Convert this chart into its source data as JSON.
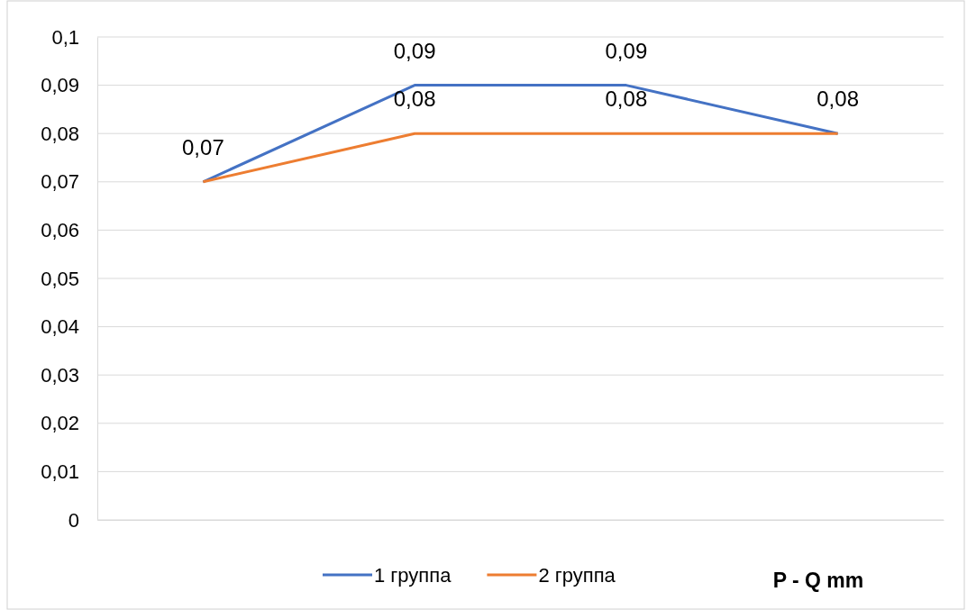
{
  "chart_data": {
    "type": "line",
    "xlabel": "P - Q mm",
    "categories": [
      null,
      null,
      null,
      null
    ],
    "series": [
      {
        "name": "1 группа",
        "color": "#4472c4",
        "values": [
          0.07,
          0.09,
          0.09,
          0.08
        ],
        "value_labels": [
          "0,07",
          "0,09",
          "0,09",
          "0,08"
        ]
      },
      {
        "name": "2 группа",
        "color": "#ed7d31",
        "values": [
          0.07,
          0.08,
          0.08,
          0.08
        ],
        "value_labels": [
          null,
          "0,08",
          "0,08",
          null
        ]
      }
    ],
    "ylim": [
      0,
      0.1
    ],
    "yticks": [
      {
        "value": 0,
        "label": "0"
      },
      {
        "value": 0.01,
        "label": "0,01"
      },
      {
        "value": 0.02,
        "label": "0,02"
      },
      {
        "value": 0.03,
        "label": "0,03"
      },
      {
        "value": 0.04,
        "label": "0,04"
      },
      {
        "value": 0.05,
        "label": "0,05"
      },
      {
        "value": 0.06,
        "label": "0,06"
      },
      {
        "value": 0.07,
        "label": "0,07"
      },
      {
        "value": 0.08,
        "label": "0,08"
      },
      {
        "value": 0.09,
        "label": "0,09"
      },
      {
        "value": 0.1,
        "label": "0,1"
      }
    ],
    "grid": "y",
    "legend": "bottom",
    "marker": "none",
    "line_style": "solid"
  }
}
